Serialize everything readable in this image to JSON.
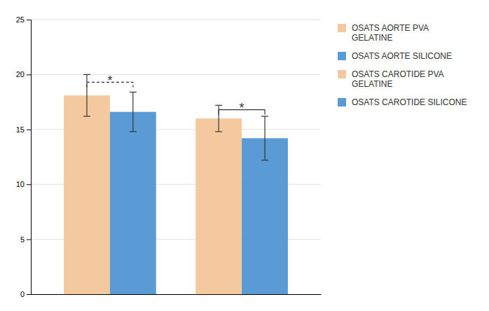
{
  "chart_data": {
    "type": "bar",
    "categories": [
      "OSATS AORTE PVA\nGELATINE",
      "OSATS AORTE SILICONE",
      "OSATS CAROTIDE PVA\nGELATINE",
      "OSATS CAROTIDE SILICONE"
    ],
    "values": [
      18.1,
      16.6,
      16.0,
      14.2
    ],
    "errors": [
      1.9,
      1.8,
      1.2,
      2.0
    ],
    "colors": [
      "#F5C9A0",
      "#5B9BD5",
      "#F5C9A0",
      "#5B9BD5"
    ],
    "ylim": [
      0,
      25
    ],
    "yticks": [
      0,
      5,
      10,
      15,
      20,
      25
    ],
    "grid": true,
    "legend": "right",
    "tick_labels": "y",
    "annotations": [
      {
        "text": "*",
        "from": 0,
        "to": 1,
        "y": 19.3,
        "text_y": 19.6,
        "line_style": "dashed"
      },
      {
        "text": "*",
        "from": 2,
        "to": 3,
        "y": 16.8,
        "text_y": 17.1,
        "line_style": "solid"
      }
    ]
  }
}
